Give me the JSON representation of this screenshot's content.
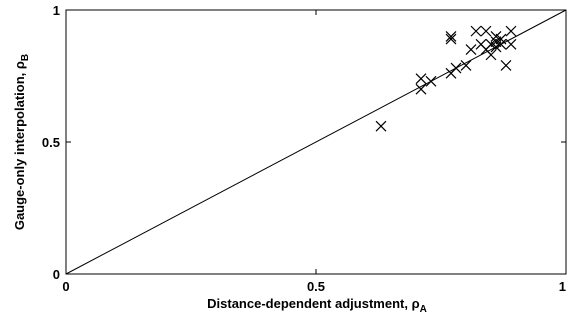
{
  "chart_data": {
    "type": "scatter",
    "title": "",
    "xlabel_main": "Distance-dependent adjustment, ",
    "xlabel_sym": "ρ",
    "xlabel_sub": "A",
    "ylabel_main": "Gauge-only interpolation, ",
    "ylabel_sym": "ρ",
    "ylabel_sub": "B",
    "xlim": [
      0,
      1
    ],
    "ylim": [
      0,
      1
    ],
    "x_ticks": [
      0,
      0.5,
      1
    ],
    "y_ticks": [
      0,
      0.5,
      1
    ],
    "x_tick_labels": [
      "0",
      "0.5",
      "1"
    ],
    "y_tick_labels": [
      "0",
      "0.5",
      "1"
    ],
    "grid": false,
    "marker": "x",
    "reference_line": {
      "from": [
        0,
        0
      ],
      "to": [
        1,
        1
      ]
    },
    "points": [
      {
        "x": 0.63,
        "y": 0.56
      },
      {
        "x": 0.71,
        "y": 0.74
      },
      {
        "x": 0.71,
        "y": 0.7
      },
      {
        "x": 0.73,
        "y": 0.73
      },
      {
        "x": 0.77,
        "y": 0.89
      },
      {
        "x": 0.77,
        "y": 0.9
      },
      {
        "x": 0.77,
        "y": 0.76
      },
      {
        "x": 0.78,
        "y": 0.78
      },
      {
        "x": 0.8,
        "y": 0.79
      },
      {
        "x": 0.81,
        "y": 0.85
      },
      {
        "x": 0.82,
        "y": 0.92
      },
      {
        "x": 0.83,
        "y": 0.87
      },
      {
        "x": 0.84,
        "y": 0.92
      },
      {
        "x": 0.84,
        "y": 0.85
      },
      {
        "x": 0.85,
        "y": 0.83
      },
      {
        "x": 0.85,
        "y": 0.87
      },
      {
        "x": 0.86,
        "y": 0.86
      },
      {
        "x": 0.86,
        "y": 0.88
      },
      {
        "x": 0.86,
        "y": 0.9
      },
      {
        "x": 0.87,
        "y": 0.87
      },
      {
        "x": 0.87,
        "y": 0.89
      },
      {
        "x": 0.88,
        "y": 0.79
      },
      {
        "x": 0.89,
        "y": 0.87
      },
      {
        "x": 0.89,
        "y": 0.92
      }
    ]
  }
}
